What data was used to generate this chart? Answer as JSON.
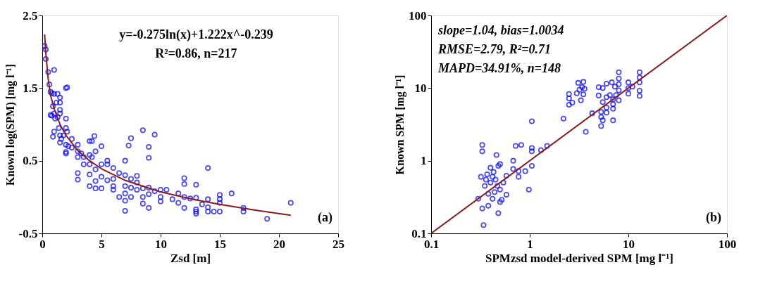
{
  "chart_data": [
    {
      "type": "scatter",
      "xlabel": "Zsd [m]",
      "ylabel": "Known log(SPM) [mg l⁻¹]",
      "xlim": [
        0,
        25
      ],
      "ylim": [
        -0.5,
        2.5
      ],
      "xticks": [
        0,
        5,
        10,
        15,
        20,
        25
      ],
      "yticks": [
        -0.5,
        0.5,
        1.5,
        2.5
      ],
      "grid": false,
      "annotations": [
        "y=-0.275ln(x)+1.222x^-0.239",
        "R²=0.86, n=217",
        "(a)"
      ],
      "series": [
        {
          "type": "scatter",
          "marker": "circle",
          "color": "#0000ff",
          "x": [
            0.2,
            0.3,
            0.3,
            0.5,
            1.0,
            0.6,
            0.7,
            0.8,
            1.0,
            1.3,
            1.5,
            1.5,
            1.2,
            0.9,
            1.5,
            1.5,
            0.7,
            0.8,
            1.0,
            1.1,
            1.3,
            2.0,
            2.1,
            2.0,
            1.4,
            1.0,
            0.9,
            1.5,
            1.6,
            1.5,
            2.0,
            2.1,
            1.8,
            2.5,
            2.0,
            2.2,
            2.0,
            2.0,
            2.5,
            3.0,
            3.0,
            3.0,
            3.3,
            3.5,
            3.5,
            3.0,
            3.0,
            4.0,
            4.2,
            4.4,
            4.0,
            4.2,
            4.0,
            4.0,
            4.0,
            4.5,
            4.5,
            4.5,
            4.5,
            5.0,
            5.0,
            5.0,
            5.0,
            5.5,
            5.5,
            5.5,
            6.0,
            6.0,
            6.0,
            6.0,
            6.5,
            6.5,
            7.0,
            7.0,
            7.0,
            7.0,
            7.0,
            7.0,
            7.3,
            7.5,
            7.5,
            7.5,
            7.5,
            8.0,
            8.0,
            8.0,
            8.5,
            8.5,
            8.5,
            8.5,
            9.0,
            9.0,
            9.0,
            9.0,
            9.0,
            9.5,
            9.5,
            10,
            10,
            10,
            10.5,
            11,
            11.5,
            11.5,
            12,
            12,
            12,
            12,
            12.5,
            13,
            13,
            13,
            13,
            13,
            13.5,
            14,
            14,
            14,
            14,
            14.5,
            15,
            15,
            15,
            15,
            16,
            17,
            17,
            19,
            21
          ],
          "values": [
            2.08,
            2.03,
            1.9,
            1.72,
            1.75,
            1.55,
            1.45,
            1.43,
            1.42,
            1.42,
            1.37,
            1.3,
            1.3,
            1.25,
            1.2,
            1.15,
            1.13,
            1.12,
            1.15,
            1.08,
            1.1,
            1.5,
            1.51,
            1.08,
            0.95,
            0.9,
            0.83,
            0.85,
            0.8,
            0.75,
            0.95,
            0.9,
            0.85,
            0.8,
            0.72,
            0.7,
            0.62,
            0.6,
            0.68,
            0.72,
            0.63,
            0.55,
            0.6,
            0.55,
            0.45,
            0.33,
            0.24,
            0.77,
            0.77,
            0.84,
            0.58,
            0.55,
            0.45,
            0.31,
            0.15,
            0.63,
            0.38,
            0.22,
            0.12,
            0.7,
            0.45,
            0.28,
            0.12,
            0.5,
            0.45,
            0.23,
            0.4,
            0.25,
            0.15,
            0.1,
            0.33,
            0.0,
            0.5,
            0.3,
            0.15,
            0.05,
            -0.05,
            -0.19,
            0.71,
            0.81,
            0.25,
            0.13,
            0.0,
            0.29,
            0.2,
            0.1,
            0.92,
            0.12,
            0.0,
            -0.09,
            0.69,
            0.54,
            0.13,
            0.04,
            -0.15,
            0.86,
            0.08,
            0.1,
            0.0,
            -0.06,
            0.1,
            -0.03,
            0.05,
            -0.08,
            0.26,
            0.18,
            0.0,
            -0.15,
            -0.02,
            0.17,
            -0.01,
            -0.17,
            -0.2,
            -0.23,
            -0.1,
            0.4,
            -0.03,
            -0.14,
            -0.2,
            -0.2,
            0.03,
            -0.03,
            -0.08,
            -0.2,
            0.05,
            -0.15,
            -0.2,
            -0.3,
            -0.08
          ]
        },
        {
          "type": "line",
          "line_style": "solid",
          "color": "#8b1a1a",
          "x": [
            0.2,
            0.3,
            0.5,
            0.7,
            1,
            1.5,
            2,
            3,
            4,
            5,
            7,
            10,
            13,
            15,
            18,
            21
          ],
          "values": [
            2.24,
            1.98,
            1.63,
            1.4,
            1.22,
            1.0,
            0.85,
            0.64,
            0.5,
            0.39,
            0.23,
            0.07,
            -0.04,
            -0.1,
            -0.18,
            -0.25
          ]
        }
      ]
    },
    {
      "type": "scatter",
      "xlabel": "SPMzsd model-derived SPM [mg l⁻¹]",
      "ylabel": "Known SPM [mg l⁻¹]",
      "xlim": [
        0.1,
        100
      ],
      "ylim": [
        0.1,
        100
      ],
      "xticks": [
        0.1,
        1,
        10,
        100
      ],
      "yticks": [
        0.1,
        1,
        10,
        100
      ],
      "log": "xy",
      "grid": false,
      "annotations": [
        "slope=1.04, bias=1.0034",
        "RMSE=2.79, R²=0.71",
        "MAPD=34.91%, n=148",
        "(b)"
      ],
      "series": [
        {
          "type": "scatter",
          "marker": "circle",
          "color": "#0000ff",
          "x": [
            0.3,
            0.32,
            0.33,
            0.33,
            0.33,
            0.34,
            0.35,
            0.36,
            0.37,
            0.38,
            0.38,
            0.4,
            0.4,
            0.42,
            0.42,
            0.43,
            0.44,
            0.45,
            0.46,
            0.47,
            0.48,
            0.48,
            0.5,
            0.5,
            0.5,
            0.52,
            0.54,
            0.58,
            0.58,
            0.68,
            0.68,
            0.72,
            0.77,
            0.77,
            0.82,
            0.9,
            0.98,
            1.05,
            1.05,
            1.05,
            1.05,
            1.3,
            1.5,
            2.2,
            2.5,
            2.5,
            2.5,
            2.7,
            3.0,
            3.1,
            3.2,
            3.3,
            3.4,
            3.5,
            3.5,
            3.6,
            3.7,
            4.3,
            5.0,
            5.0,
            5.3,
            5.3,
            5.3,
            5.5,
            5.5,
            5.5,
            6.0,
            6.0,
            6.0,
            6.0,
            6.5,
            6.8,
            7.0,
            7.0,
            7.0,
            7.0,
            7.3,
            7.5,
            8.0,
            8.0,
            8.0,
            8.0,
            8.0,
            10,
            10,
            10,
            11,
            13,
            13,
            13,
            13,
            13
          ],
          "values": [
            0.3,
            0.6,
            1.65,
            1.35,
            0.22,
            0.13,
            0.45,
            0.55,
            0.65,
            0.35,
            0.24,
            0.5,
            0.8,
            0.6,
            0.3,
            0.7,
            0.37,
            0.55,
            1.2,
            0.45,
            0.85,
            0.19,
            0.9,
            0.4,
            0.27,
            0.29,
            0.5,
            0.62,
            0.34,
            1.0,
            0.77,
            1.6,
            0.6,
            0.72,
            1.65,
            0.72,
            0.4,
            3.5,
            1.5,
            1.35,
            0.85,
            1.4,
            1.6,
            3.8,
            8.3,
            7.2,
            5.9,
            6.3,
            8.5,
            11.8,
            9.5,
            6.8,
            10.3,
            12.2,
            8.2,
            9.8,
            2.5,
            4.5,
            10.3,
            7.9,
            4.7,
            4.0,
            3.0,
            10.0,
            6.4,
            3.6,
            11.5,
            7.5,
            5.4,
            4.6,
            8.0,
            12.0,
            7.0,
            6.0,
            5.2,
            3.6,
            10.5,
            8.0,
            16.5,
            13.5,
            11.3,
            9.3,
            6.8,
            12.0,
            8.4,
            10.0,
            10.5,
            16.5,
            14.0,
            12.0,
            9.2,
            7.8
          ]
        },
        {
          "type": "line",
          "line_style": "solid",
          "color": "#8b1a1a",
          "x": [
            0.1,
            100
          ],
          "values": [
            0.1,
            100
          ]
        }
      ]
    }
  ]
}
